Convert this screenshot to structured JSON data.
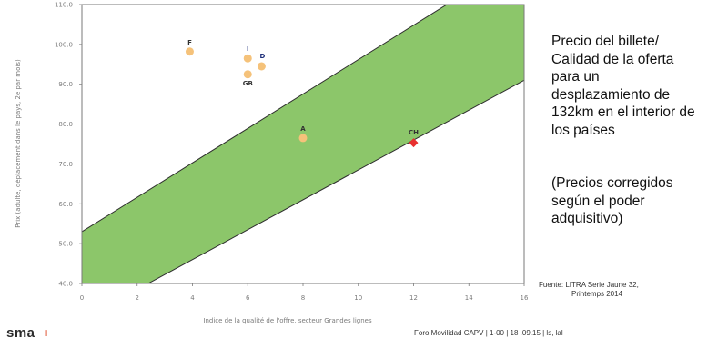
{
  "chart_data": {
    "type": "scatter",
    "title": "",
    "xlabel": "Indice de la qualité de l'offre, secteur Grandes lignes",
    "ylabel": "Prix (adulte, déplacement dans le pays, 2e par mois)",
    "xlim": [
      0,
      16
    ],
    "ylim": [
      40,
      110
    ],
    "x_ticks": [
      "0",
      "2",
      "4",
      "6",
      "8",
      "10",
      "12",
      "14",
      "16"
    ],
    "y_ticks": [
      "40.0",
      "50.0",
      "60.0",
      "70.0",
      "80.0",
      "90.0",
      "100.0",
      "110.0"
    ],
    "grid": false,
    "band": {
      "color": "#8cc66a",
      "lower": [
        [
          2.4,
          40
        ],
        [
          16,
          91
        ]
      ],
      "upper": [
        [
          0,
          53
        ],
        [
          13.2,
          110
        ]
      ]
    },
    "points": [
      {
        "label": "F",
        "x": 3.9,
        "y": 98.2,
        "color": "#f5c27a",
        "shape": "circle"
      },
      {
        "label": "I",
        "x": 6.0,
        "y": 96.5,
        "color": "#f5c27a",
        "shape": "circle"
      },
      {
        "label": "D",
        "x": 6.5,
        "y": 94.5,
        "color": "#f5c27a",
        "shape": "circle"
      },
      {
        "label": "GB",
        "x": 6.0,
        "y": 92.5,
        "color": "#f5c27a",
        "shape": "circle"
      },
      {
        "label": "A",
        "x": 8.0,
        "y": 76.5,
        "color": "#f5c27a",
        "shape": "circle"
      },
      {
        "label": "CH",
        "x": 12.0,
        "y": 75.3,
        "color": "#e8302f",
        "shape": "diamond"
      }
    ]
  },
  "side_title_lines": [
    "Precio del billete/",
    "Calidad de la oferta",
    "para un",
    "desplazamiento de",
    "132km en el interior de",
    "los países"
  ],
  "side_note_lines": [
    "(Precios corregidos",
    "según el poder",
    "adquisitivo)"
  ],
  "source_line1": "Fuente: LITRA Serie Jaune 32,",
  "source_line2": "Printemps 2014",
  "footer": "Foro Movilidad CAPV | 1-00 | 18 .09.15 | ls, lal",
  "logo_text": "sma",
  "logo_mark": "+"
}
